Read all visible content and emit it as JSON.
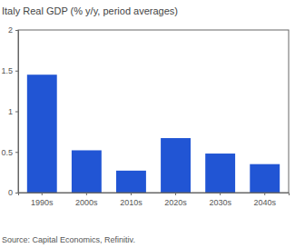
{
  "chart_data": {
    "type": "bar",
    "title": "Italy Real GDP (% y/y, period averages)",
    "source": "Source: Capital Economics, Refinitiv.",
    "categories": [
      "1990s",
      "2000s",
      "2010s",
      "2020s",
      "2030s",
      "2040s"
    ],
    "values": [
      1.45,
      0.52,
      0.27,
      0.67,
      0.48,
      0.35
    ],
    "color": "#2155d4",
    "ylim": [
      0,
      2
    ],
    "yticks": [
      0,
      0.5,
      1,
      1.5,
      2
    ],
    "grid": false
  }
}
